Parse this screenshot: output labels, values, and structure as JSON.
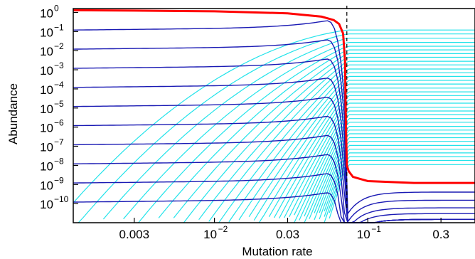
{
  "chart_data": {
    "type": "line",
    "xlabel": "Mutation rate",
    "ylabel": "Abundance",
    "x_scale": "log",
    "y_scale": "log",
    "xlim": [
      0.0012,
      0.5
    ],
    "ylim": [
      1e-11,
      1.6
    ],
    "critical_mutation_rate": 0.073,
    "x_ticks": [
      {
        "value": 0.003,
        "label": "0.003"
      },
      {
        "value": 0.01,
        "label": "10",
        "exp": "−2"
      },
      {
        "value": 0.03,
        "label": "0.03"
      },
      {
        "value": 0.1,
        "label": "10",
        "exp": "−1"
      },
      {
        "value": 0.3,
        "label": "0.3"
      }
    ],
    "y_ticks": [
      {
        "value": 1,
        "label": "10",
        "exp": "0"
      },
      {
        "value": 0.1,
        "label": "10",
        "exp": "−1"
      },
      {
        "value": 0.01,
        "label": "10",
        "exp": "−2"
      },
      {
        "value": 0.001,
        "label": "10",
        "exp": "−3"
      },
      {
        "value": 0.0001,
        "label": "10",
        "exp": "−4"
      },
      {
        "value": 1e-05,
        "label": "10",
        "exp": "−5"
      },
      {
        "value": 1e-06,
        "label": "10",
        "exp": "−6"
      },
      {
        "value": 1e-07,
        "label": "10",
        "exp": "−7"
      },
      {
        "value": 1e-08,
        "label": "10",
        "exp": "−8"
      },
      {
        "value": 1e-09,
        "label": "10",
        "exp": "−9"
      },
      {
        "value": 1e-10,
        "label": "10",
        "exp": "−10"
      }
    ],
    "master_sequence": {
      "color": "#ff0000",
      "x": [
        0.0012,
        0.003,
        0.01,
        0.03,
        0.05,
        0.06,
        0.065,
        0.069,
        0.071,
        0.072,
        0.073,
        0.075,
        0.08,
        0.1,
        0.2,
        0.5
      ],
      "y": [
        1.3,
        1.25,
        1.15,
        0.9,
        0.6,
        0.4,
        0.25,
        0.08,
        0.003,
        1e-06,
        1e-08,
        5e-09,
        2.5e-09,
        1.5e-09,
        1.2e-09,
        1.2e-09
      ]
    },
    "error_classes": {
      "dark_color": "#1a1ab4",
      "light_color": "#22e3ea",
      "dark_start_values": [
        0.12,
        0.012,
        0.0012,
        0.00012,
        1.2e-05,
        1.2e-06,
        1.2e-07,
        1.2e-08,
        1.2e-09,
        1.2e-10
      ],
      "dark_plateau_values": [
        4e-10,
        1.5e-10,
        6e-11,
        3e-11
      ],
      "light_plateau_values": [
        0.12,
        0.075,
        0.045,
        0.027,
        0.017,
        0.011,
        0.007,
        0.0045,
        0.0028,
        0.0018,
        0.0011,
        0.0007,
        0.00045,
        0.00028,
        0.00018,
        0.00011,
        7e-05,
        4.5e-05,
        2.8e-05,
        1.8e-05,
        1.1e-05,
        7e-06,
        4.5e-06,
        2.8e-06,
        1.8e-06,
        1.1e-06,
        7e-07,
        4.5e-07,
        2.8e-07,
        1.8e-07,
        1.1e-07,
        7e-08,
        4.5e-08,
        2.8e-08,
        1.8e-08,
        1.1e-08
      ]
    },
    "grid": false,
    "legend": "none"
  }
}
